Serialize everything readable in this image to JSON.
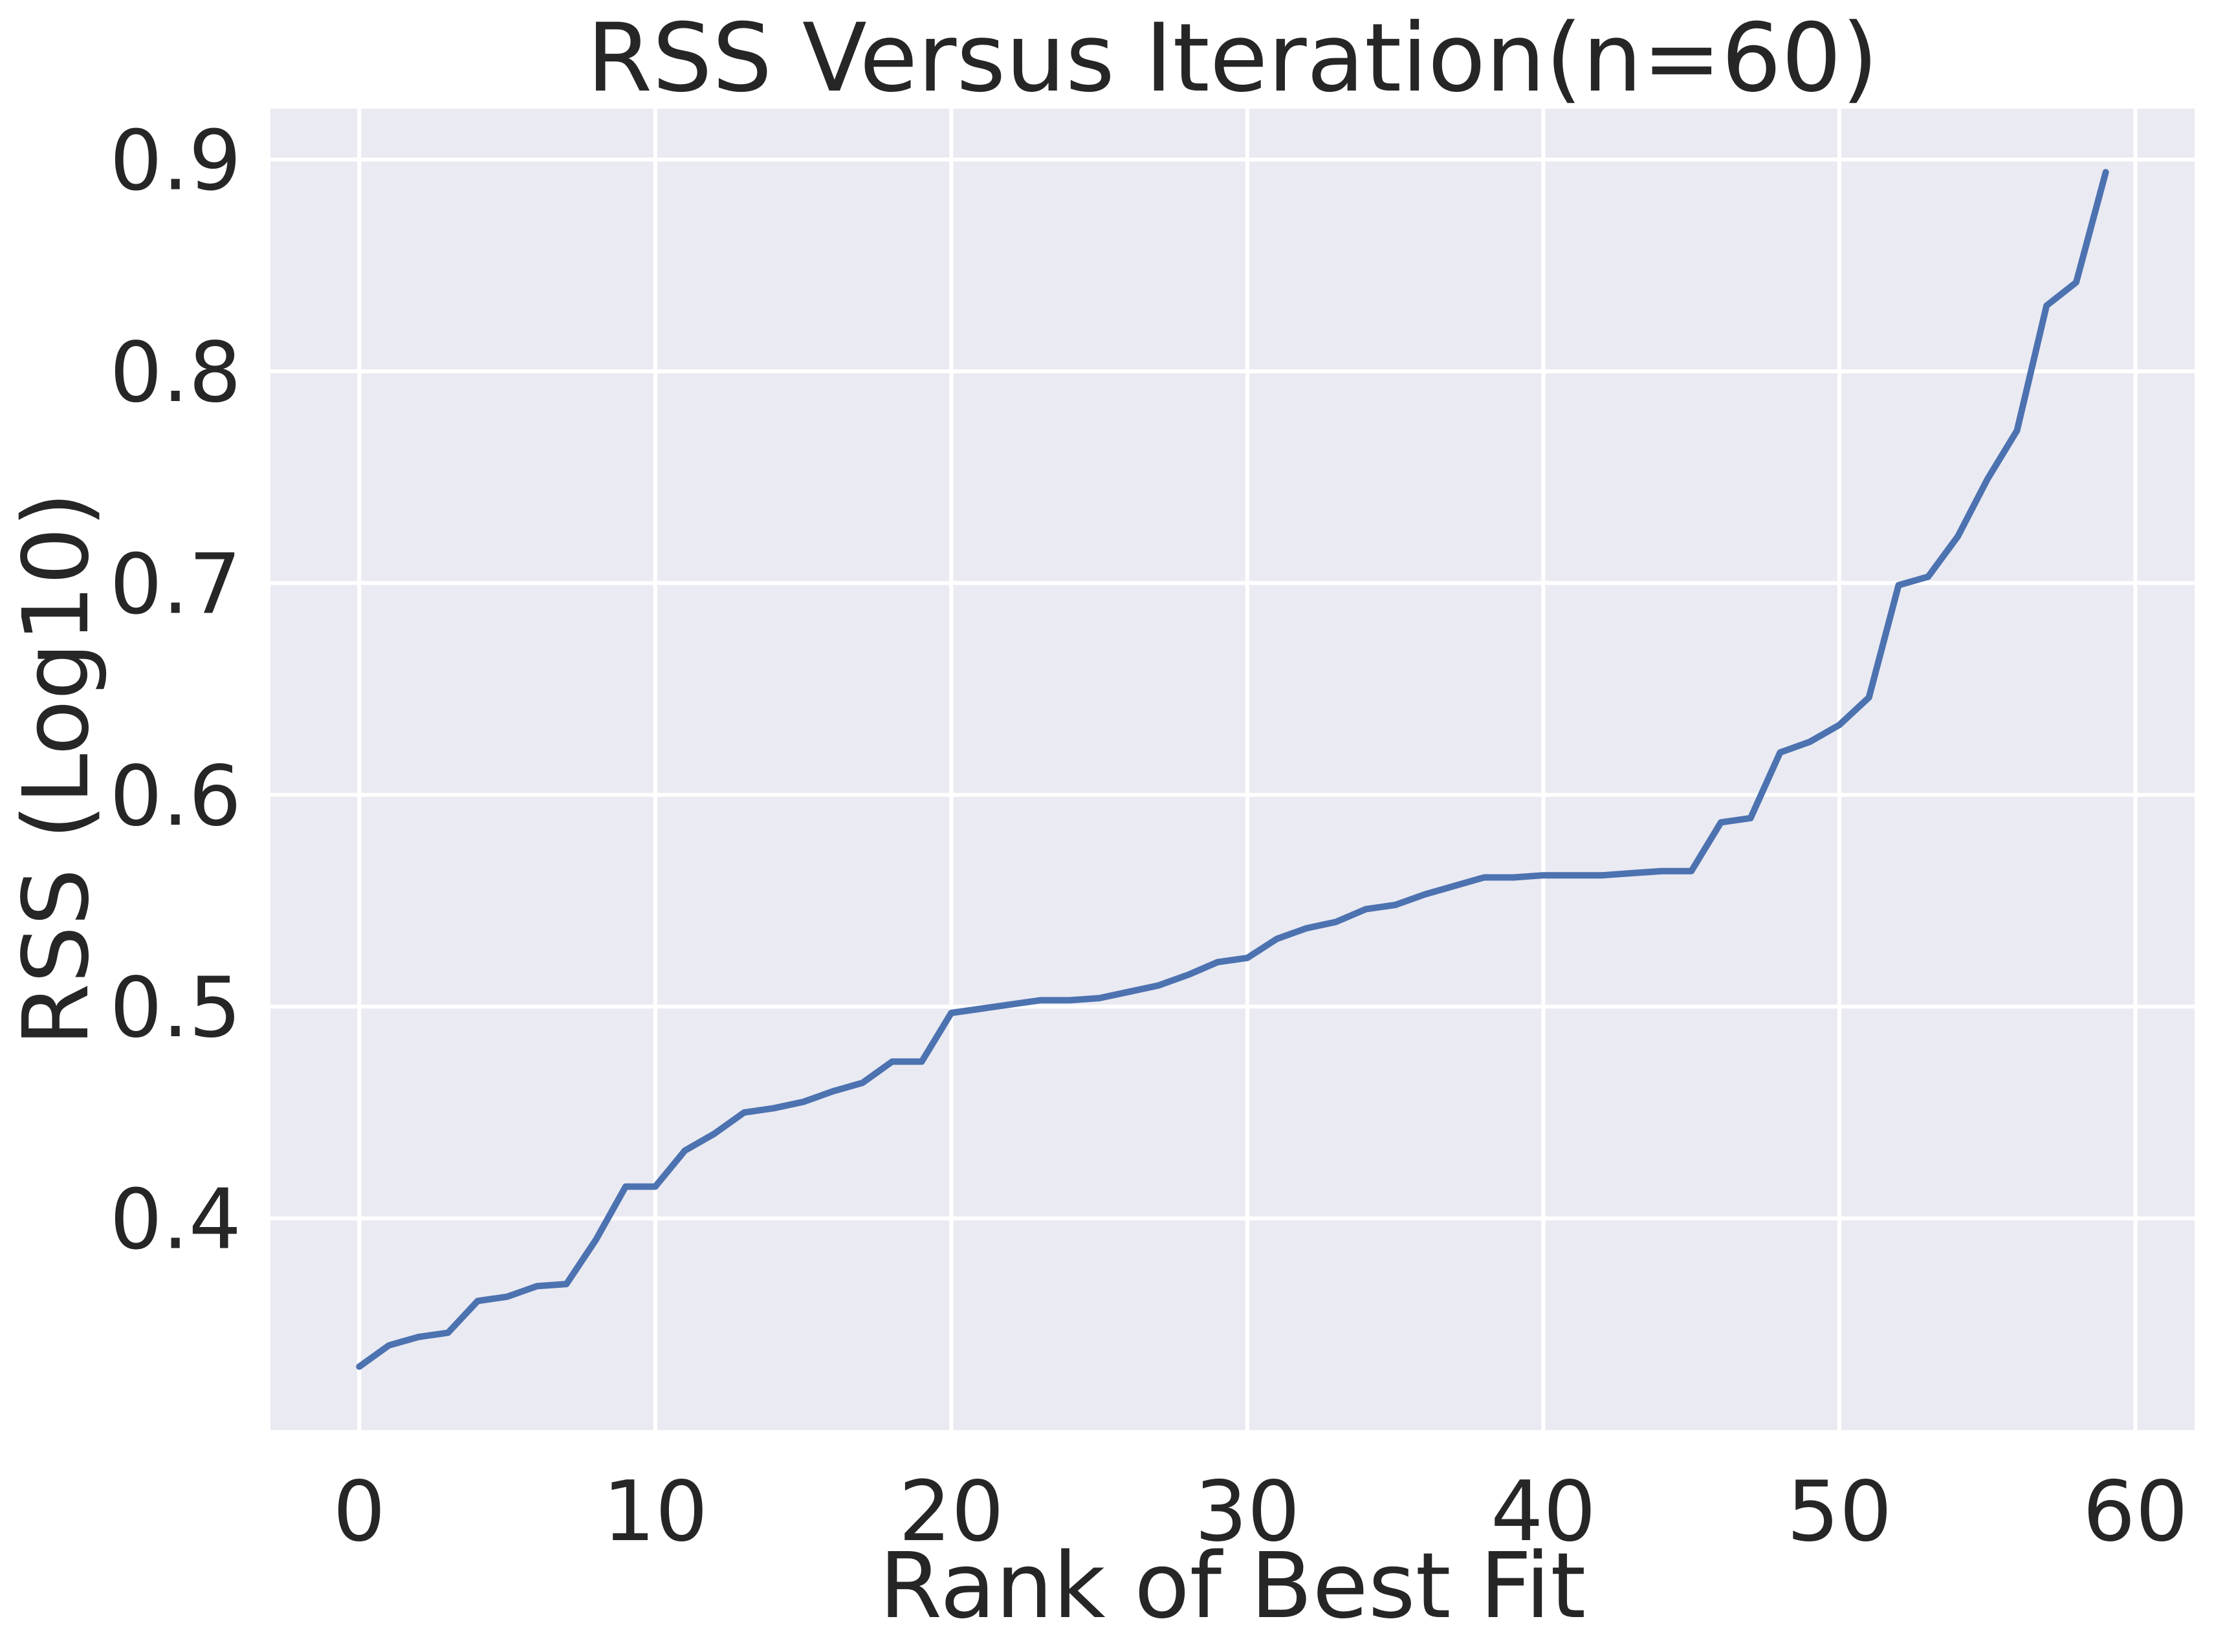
{
  "chart_data": {
    "type": "line",
    "title": "RSS Versus Iteration(n=60)",
    "xlabel": "Rank of Best Fit",
    "ylabel": "RSS (Log10)",
    "xlim": [
      -3,
      62
    ],
    "ylim": [
      0.3,
      0.924
    ],
    "xticks": [
      0,
      10,
      20,
      30,
      40,
      50,
      60
    ],
    "xtick_labels": [
      "0",
      "10",
      "20",
      "30",
      "40",
      "50",
      "60"
    ],
    "yticks": [
      0.4,
      0.5,
      0.6,
      0.7,
      0.8,
      0.9
    ],
    "ytick_labels": [
      "0.4",
      "0.5",
      "0.6",
      "0.7",
      "0.8",
      "0.9"
    ],
    "grid": true,
    "legend": "none",
    "colors": {
      "background": "#eaeaf2",
      "grid": "#ffffff",
      "line": "#4c72b0",
      "text": "#262626"
    },
    "series": [
      {
        "x": [
          0,
          1,
          2,
          3,
          4,
          5,
          6,
          7,
          8,
          9,
          10,
          11,
          12,
          13,
          14,
          15,
          16,
          17,
          18,
          19,
          20,
          21,
          22,
          23,
          24,
          25,
          26,
          27,
          28,
          29,
          30,
          31,
          32,
          33,
          34,
          35,
          36,
          37,
          38,
          39,
          40,
          41,
          42,
          43,
          44,
          45,
          46,
          47,
          48,
          49,
          50,
          51,
          52,
          53,
          54,
          55,
          56,
          57,
          58,
          59
        ],
        "values": [
          0.33,
          0.34,
          0.344,
          0.346,
          0.361,
          0.363,
          0.368,
          0.369,
          0.39,
          0.415,
          0.415,
          0.432,
          0.44,
          0.45,
          0.452,
          0.455,
          0.46,
          0.464,
          0.474,
          0.474,
          0.497,
          0.499,
          0.501,
          0.503,
          0.503,
          0.504,
          0.507,
          0.51,
          0.515,
          0.521,
          0.523,
          0.532,
          0.537,
          0.54,
          0.546,
          0.548,
          0.553,
          0.557,
          0.561,
          0.561,
          0.562,
          0.562,
          0.562,
          0.563,
          0.564,
          0.564,
          0.587,
          0.589,
          0.62,
          0.625,
          0.633,
          0.646,
          0.699,
          0.703,
          0.722,
          0.749,
          0.772,
          0.831,
          0.842,
          0.894
        ]
      }
    ]
  }
}
